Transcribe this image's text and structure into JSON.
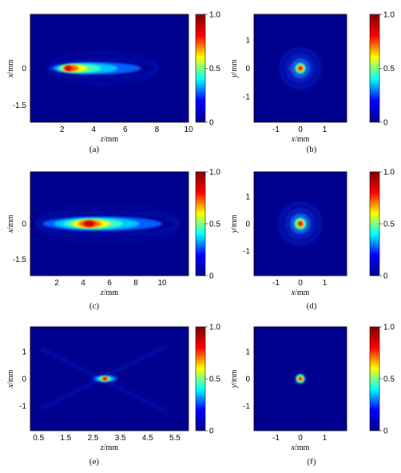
{
  "colormap": [
    "#00008f",
    "#0000ff",
    "#00ffff",
    "#ffff00",
    "#ff0000",
    "#800000"
  ],
  "background_color": "#00008f",
  "colorbar_ticks": [
    "1.0",
    "0.5",
    "0"
  ],
  "chart_data": [
    {
      "type": "heatmap",
      "caption": "(a)",
      "xlabel": "z/mm",
      "ylabel": "x/mm",
      "xticks": [
        "2",
        "4",
        "6",
        "8",
        "10"
      ],
      "yticks": [
        "0",
        "-1.5"
      ],
      "xlim": [
        0,
        10
      ],
      "ylim": [
        -2.2,
        2.2
      ],
      "beam": {
        "kind": "longitudinal",
        "peak_z": 2.3,
        "peak_x": 0,
        "extent_z": [
          1.2,
          7
        ],
        "width": 0.25
      }
    },
    {
      "type": "heatmap",
      "caption": "(b)",
      "xlabel": "x/mm",
      "ylabel": "y/mm",
      "xticks": [
        "-1",
        "0",
        "1"
      ],
      "yticks": [
        "1",
        "0",
        "-1"
      ],
      "xlim": [
        -1.9,
        1.9
      ],
      "ylim": [
        -1.9,
        1.9
      ],
      "beam": {
        "kind": "transverse",
        "center": [
          0,
          0
        ],
        "core_radius": 0.15,
        "rings": [
          0.33,
          0.55,
          0.78
        ]
      }
    },
    {
      "type": "heatmap",
      "caption": "(c)",
      "xlabel": "z/mm",
      "ylabel": "x/mm",
      "xticks": [
        "2",
        "4",
        "6",
        "8",
        "10"
      ],
      "yticks": [
        "0",
        "-1.5"
      ],
      "xlim": [
        0,
        12
      ],
      "ylim": [
        -2.2,
        2.2
      ],
      "beam": {
        "kind": "longitudinal",
        "peak_z": 4.5,
        "peak_x": 0,
        "extent_z": [
          0.5,
          10
        ],
        "width": 0.3
      }
    },
    {
      "type": "heatmap",
      "caption": "(d)",
      "xlabel": "x/mm",
      "ylabel": "y/mm",
      "xticks": [
        "-1",
        "0",
        "1"
      ],
      "yticks": [
        "1",
        "0",
        "-1"
      ],
      "xlim": [
        -1.9,
        1.9
      ],
      "ylim": [
        -1.9,
        1.9
      ],
      "beam": {
        "kind": "transverse",
        "center": [
          0,
          0
        ],
        "core_radius": 0.17,
        "rings": [
          0.35,
          0.58,
          0.82
        ]
      }
    },
    {
      "type": "heatmap",
      "caption": "(e)",
      "xlabel": "z/mm",
      "ylabel": "x/mm",
      "xticks": [
        "0.5",
        "1.5",
        "2.5",
        "3.5",
        "4.5",
        "5.5"
      ],
      "yticks": [
        "1",
        "0",
        "-1"
      ],
      "xlim": [
        0.2,
        6.0
      ],
      "ylim": [
        -1.9,
        1.9
      ],
      "beam": {
        "kind": "focal",
        "peak_z": 2.95,
        "peak_x": 0,
        "extent_z": [
          2.5,
          3.4
        ],
        "width": 0.12
      }
    },
    {
      "type": "heatmap",
      "caption": "(f)",
      "xlabel": "x/mm",
      "ylabel": "y/mm",
      "xticks": [
        "-1",
        "0",
        "1"
      ],
      "yticks": [
        "1",
        "0",
        "-1"
      ],
      "xlim": [
        -1.9,
        1.9
      ],
      "ylim": [
        -1.9,
        1.9
      ],
      "beam": {
        "kind": "spot",
        "center": [
          0,
          0
        ],
        "core_radius": 0.12,
        "rings": []
      }
    }
  ]
}
